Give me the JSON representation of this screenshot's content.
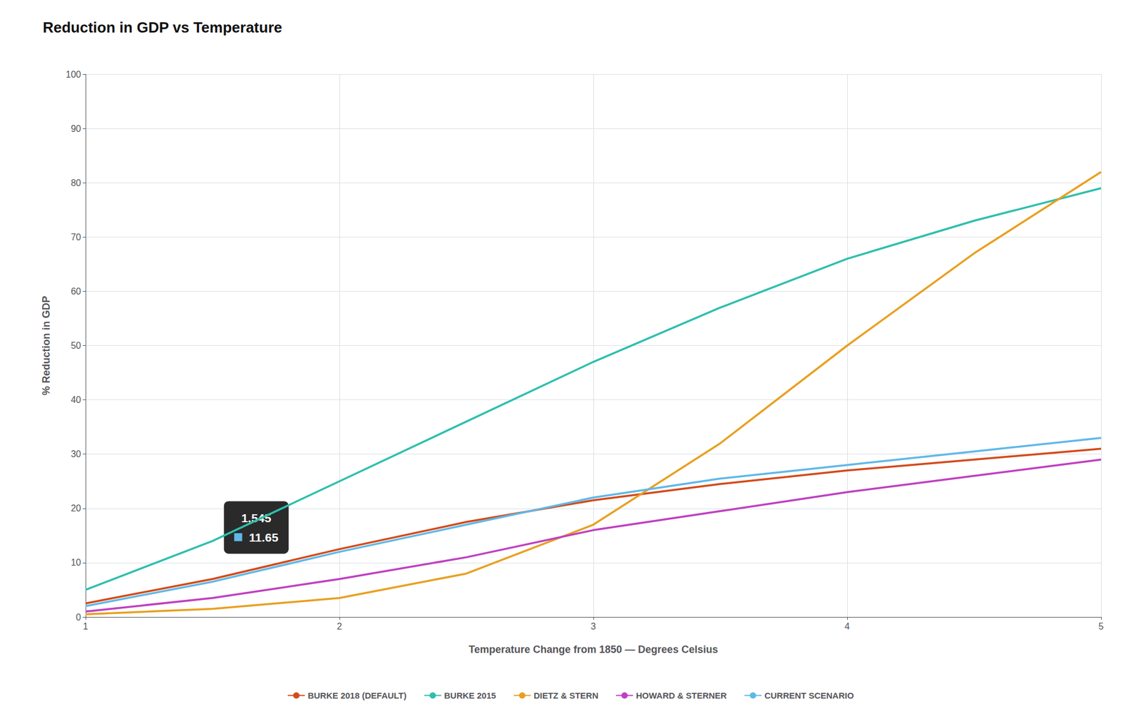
{
  "chart_data": {
    "type": "line",
    "title": "Reduction in GDP vs Temperature",
    "x_label": "Temperature Change from 1850 — Degrees Celsius",
    "y_label": "% Reduction in GDP",
    "x": [
      1,
      1.5,
      2,
      2.5,
      3,
      3.5,
      4,
      4.5,
      5
    ],
    "series": [
      {
        "name": "BURKE 2018 (DEFAULT)",
        "color": "#d44a1a",
        "values": [
          2.5,
          7.0,
          12.5,
          17.5,
          21.5,
          24.5,
          27.0,
          29.0,
          31.0
        ]
      },
      {
        "name": "BURKE 2015",
        "color": "#2dbfad",
        "values": [
          5.0,
          14.0,
          25.0,
          36.0,
          47.0,
          57.0,
          66.0,
          73.0,
          79.0
        ]
      },
      {
        "name": "DIETZ & STERN",
        "color": "#e8a020",
        "values": [
          0.5,
          1.5,
          3.5,
          8.0,
          17.0,
          32.0,
          50.0,
          67.0,
          82.0
        ]
      },
      {
        "name": "HOWARD & STERNER",
        "color": "#c040c0",
        "values": [
          1.0,
          3.5,
          7.0,
          11.0,
          16.0,
          19.5,
          23.0,
          26.0,
          29.0
        ]
      },
      {
        "name": "CURRENT SCENARIO",
        "color": "#60b8e8",
        "values": [
          2.0,
          6.5,
          12.0,
          17.0,
          22.0,
          25.5,
          28.0,
          30.5,
          33.0
        ]
      }
    ],
    "xlim": [
      1,
      5
    ],
    "xticks": [
      1,
      2,
      3,
      4,
      5
    ],
    "ylim": [
      0,
      100
    ],
    "yticks": [
      0,
      10,
      20,
      30,
      40,
      50,
      60,
      70,
      80,
      90,
      100
    ],
    "grid": true,
    "legend": "bottom",
    "annotations": [
      {
        "x": 1.545,
        "y": 11.65,
        "text": [
          "1.545",
          "11.65"
        ],
        "color": "#60b8e8"
      }
    ]
  }
}
